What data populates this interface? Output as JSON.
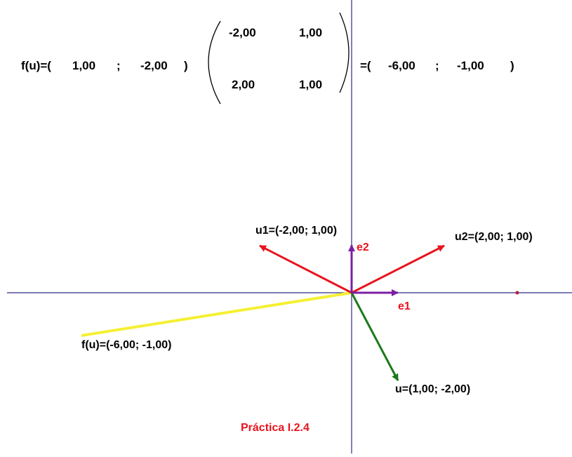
{
  "equation": {
    "lhs": "f(u)=(",
    "u_x": "1,00",
    "separator": ";",
    "u_y": "-2,00",
    "close": ")",
    "matrix": [
      [
        "-2,00",
        "1,00"
      ],
      [
        "2,00",
        "1,00"
      ]
    ],
    "rhs_open": "=(",
    "fu_x": "-6,00",
    "rhs_separator": ";",
    "fu_y": "-1,00",
    "rhs_close": ")"
  },
  "vectors": {
    "u1": {
      "label": "u1=(-2,00; 1,00)",
      "x": -2,
      "y": 1,
      "color": "#e8141e"
    },
    "u2": {
      "label": "u2=(2,00; 1,00)",
      "x": 2,
      "y": 1,
      "color": "#e8141e"
    },
    "e1": {
      "label": "e1",
      "x": 1,
      "y": 0,
      "color": "#7b1fa2"
    },
    "e2": {
      "label": "e2",
      "x": 0,
      "y": 1,
      "color": "#7b1fa2"
    },
    "u": {
      "label": "u=(1,00; -2,00)",
      "x": 1,
      "y": -2,
      "color": "#1b7a1b"
    },
    "fu": {
      "label": "f(u)=(-6,00; -1,00)",
      "x": -6,
      "y": -1,
      "color": "#f5f032"
    }
  },
  "axes_color": "#2c2c8c",
  "basis_label_color": "#e8141e",
  "caption": "Práctica I.2.4",
  "caption_color": "#e8141e"
}
